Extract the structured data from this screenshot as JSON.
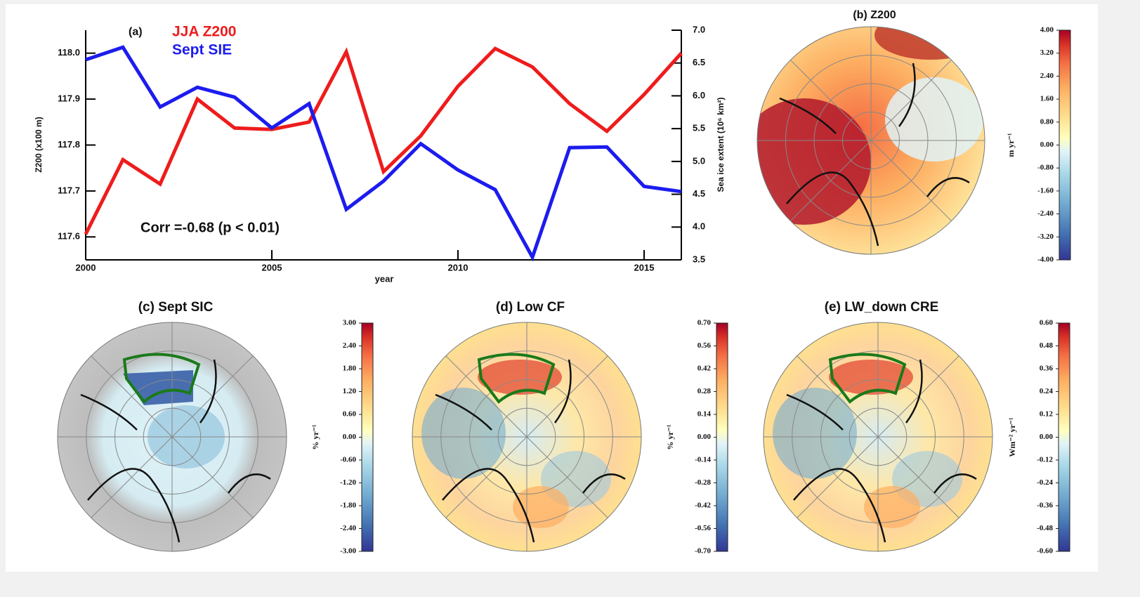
{
  "chart_data": [
    {
      "type": "line",
      "title": "(a)",
      "annotation": "Corr =-0.68 (p < 0.01)",
      "xlabel": "year",
      "ylabel": "Z200 (x100 m)",
      "y2label": "Sea ice extent (10⁶ km²)",
      "x": [
        2000,
        2001,
        2002,
        2003,
        2004,
        2005,
        2006,
        2007,
        2008,
        2009,
        2010,
        2011,
        2012,
        2013,
        2014,
        2015,
        2016
      ],
      "xlim": [
        2000,
        2016
      ],
      "xticks": [
        2000,
        2005,
        2010,
        2015
      ],
      "ylim": [
        117.55,
        118.05
      ],
      "yticks": [
        117.6,
        117.7,
        117.8,
        117.9,
        {
          "value": 118,
          "label": "118.0"
        }
      ],
      "y2lim": [
        3.5,
        7
      ],
      "y2ticks": [
        3.5,
        {
          "value": 4,
          "label": "4.0"
        },
        4.5,
        {
          "value": 5,
          "label": "5.0"
        },
        5.5,
        {
          "value": 6,
          "label": "6.0"
        },
        6.5,
        {
          "value": 7,
          "label": "7.0"
        }
      ],
      "series": [
        {
          "name": "JJA Z200",
          "color": "#ee1c1c",
          "values": [
            117.606,
            117.768,
            117.715,
            117.9,
            117.837,
            117.834,
            117.85,
            118.003,
            117.742,
            117.82,
            117.928,
            118.01,
            117.97,
            117.89,
            117.83,
            117.91,
            118.0
          ]
        },
        {
          "name": "Sept SIE",
          "color": "#1c1cee",
          "axis": "y2",
          "values": [
            6.55,
            6.74,
            5.83,
            6.13,
            5.98,
            5.51,
            5.88,
            4.27,
            4.7,
            5.27,
            4.87,
            4.57,
            3.54,
            5.21,
            5.22,
            4.62,
            4.54
          ]
        }
      ]
    },
    {
      "type": "map",
      "title": "(b) Z200",
      "ylabel": "m yr⁻¹",
      "ylim": [
        -4,
        4
      ],
      "yticks": [
        {
          "value": 4,
          "label": "4.00"
        },
        {
          "value": 3.2,
          "label": "3.20"
        },
        {
          "value": 2.4,
          "label": "2.40"
        },
        {
          "value": 1.6,
          "label": "1.60"
        },
        {
          "value": 0.8,
          "label": "0.80"
        },
        {
          "value": 0,
          "label": "0.00"
        },
        {
          "value": -0.8,
          "label": "-0.80"
        },
        {
          "value": -1.6,
          "label": "-1.60"
        },
        {
          "value": -2.4,
          "label": "-2.40"
        },
        {
          "value": -3.2,
          "label": "-3.20"
        },
        {
          "value": -4,
          "label": "-4.00"
        }
      ]
    },
    {
      "type": "map",
      "title": "(c) Sept SIC",
      "ylabel": "% yr⁻¹",
      "ylim": [
        -3,
        3
      ],
      "yticks": [
        {
          "value": 3,
          "label": "3.00"
        },
        {
          "value": 2.4,
          "label": "2.40"
        },
        {
          "value": 1.8,
          "label": "1.80"
        },
        {
          "value": 1.2,
          "label": "1.20"
        },
        {
          "value": 0.6,
          "label": "0.60"
        },
        {
          "value": 0,
          "label": "0.00"
        },
        {
          "value": -0.6,
          "label": "-0.60"
        },
        {
          "value": -1.2,
          "label": "-1.20"
        },
        {
          "value": -1.8,
          "label": "-1.80"
        },
        {
          "value": -2.4,
          "label": "-2.40"
        },
        {
          "value": -3,
          "label": "-3.00"
        }
      ]
    },
    {
      "type": "map",
      "title": "(d) Low CF",
      "ylabel": "% yr⁻¹",
      "ylim": [
        -0.7,
        0.7
      ],
      "yticks": [
        {
          "value": 0.7,
          "label": "0.70"
        },
        0.56,
        0.42,
        0.28,
        0.14,
        {
          "value": 0,
          "label": "0.00"
        },
        -0.14,
        -0.28,
        -0.42,
        -0.56,
        {
          "value": -0.7,
          "label": "-0.70"
        }
      ]
    },
    {
      "type": "map",
      "title": "(e) LW_down CRE",
      "ylabel": "Wm⁻² yr⁻¹",
      "ylim": [
        -0.6,
        0.6
      ],
      "yticks": [
        {
          "value": 0.6,
          "label": "0.60"
        },
        0.48,
        0.36,
        0.24,
        0.12,
        {
          "value": 0,
          "label": "0.00"
        },
        -0.12,
        -0.24,
        -0.36,
        -0.48,
        {
          "value": -0.6,
          "label": "-0.60"
        }
      ]
    }
  ]
}
